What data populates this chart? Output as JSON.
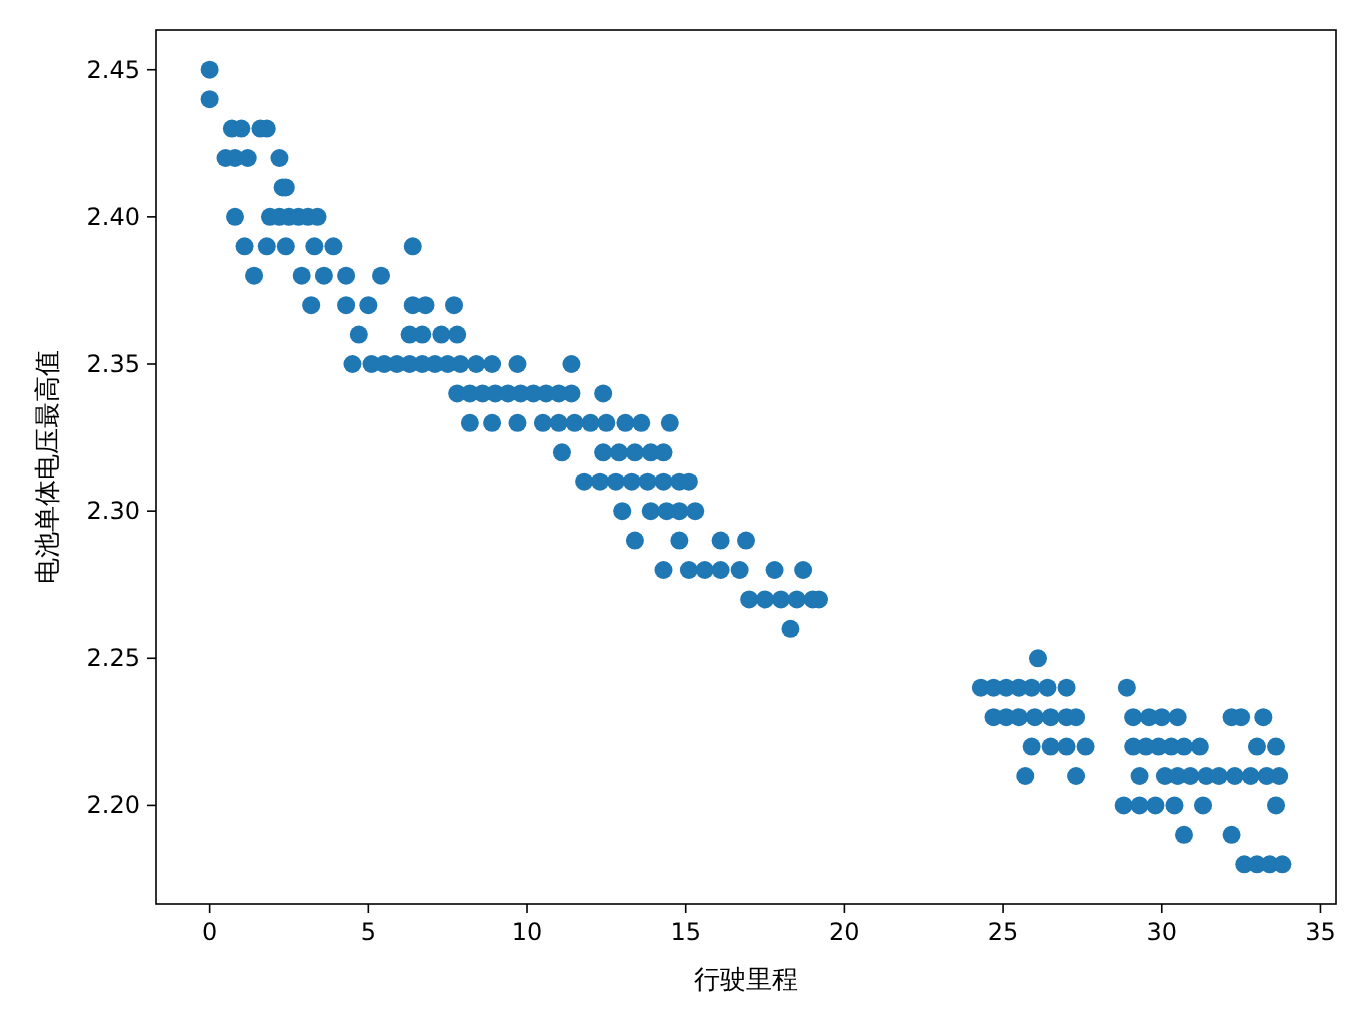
{
  "chart_data": {
    "type": "scatter",
    "xlabel": "行驶里程",
    "ylabel": "电池单体电压最高值",
    "xlim": [
      -1.69,
      35.49
    ],
    "ylim": [
      2.1665,
      2.4635
    ],
    "xticks": [
      0,
      5,
      10,
      15,
      20,
      25,
      30,
      35
    ],
    "yticks": [
      {
        "value": 2.2,
        "label": "2.20"
      },
      2.25,
      {
        "value": 2.3,
        "label": "2.30"
      },
      2.35,
      {
        "value": 2.4,
        "label": "2.40"
      },
      2.45
    ],
    "grid": false,
    "marker": "circle",
    "series": [
      {
        "color": "#1f77b4",
        "x": [
          0,
          0,
          0.7,
          1.0,
          1.6,
          1.8,
          0.5,
          0.8,
          1.2,
          2.2,
          2.3,
          2.4,
          0.8,
          1.9,
          2.2,
          2.5,
          2.8,
          3.1,
          3.4,
          1.1,
          1.8,
          2.4,
          3.3,
          3.9,
          6.4,
          1.4,
          2.9,
          3.6,
          4.3,
          5.4,
          3.2,
          4.3,
          5.0,
          6.4,
          6.8,
          7.7,
          4.7,
          6.3,
          6.7,
          7.3,
          7.8,
          4.5,
          5.1,
          5.5,
          5.9,
          6.3,
          6.7,
          7.1,
          7.5,
          7.9,
          8.4,
          8.9,
          9.7,
          11.4,
          7.8,
          8.2,
          8.6,
          9.0,
          9.4,
          9.8,
          10.2,
          10.6,
          11.0,
          11.4,
          12.4,
          8.2,
          8.9,
          9.7,
          10.5,
          11.0,
          11.5,
          12.0,
          12.5,
          13.1,
          13.6,
          14.5,
          11.1,
          12.4,
          12.9,
          13.4,
          13.9,
          14.3,
          11.8,
          12.3,
          12.8,
          13.3,
          13.8,
          14.3,
          14.8,
          15.1,
          13.0,
          13.9,
          14.4,
          14.8,
          15.3,
          13.4,
          14.8,
          16.1,
          16.9,
          14.3,
          15.1,
          15.6,
          16.1,
          16.7,
          17.8,
          18.7,
          17.0,
          17.5,
          18.0,
          18.5,
          19.0,
          19.2,
          18.3,
          26.1,
          24.3,
          24.7,
          25.1,
          25.5,
          25.9,
          26.4,
          27.0,
          28.9,
          24.7,
          25.1,
          25.5,
          26.0,
          26.5,
          27.0,
          27.3,
          29.1,
          29.6,
          30.0,
          30.5,
          32.2,
          32.5,
          33.2,
          25.9,
          26.5,
          27.0,
          27.6,
          29.1,
          29.5,
          29.9,
          30.3,
          30.7,
          31.2,
          33.0,
          33.6,
          25.7,
          27.3,
          29.3,
          30.1,
          30.5,
          30.9,
          31.4,
          31.8,
          32.3,
          32.8,
          33.3,
          33.7,
          28.8,
          29.3,
          29.8,
          30.4,
          31.3,
          33.6,
          30.7,
          32.2,
          32.6,
          33.0,
          33.4,
          33.8
        ],
        "values": [
          2.45,
          2.44,
          2.43,
          2.43,
          2.43,
          2.43,
          2.42,
          2.42,
          2.42,
          2.42,
          2.41,
          2.41,
          2.4,
          2.4,
          2.4,
          2.4,
          2.4,
          2.4,
          2.4,
          2.39,
          2.39,
          2.39,
          2.39,
          2.39,
          2.39,
          2.38,
          2.38,
          2.38,
          2.38,
          2.38,
          2.37,
          2.37,
          2.37,
          2.37,
          2.37,
          2.37,
          2.36,
          2.36,
          2.36,
          2.36,
          2.36,
          2.35,
          2.35,
          2.35,
          2.35,
          2.35,
          2.35,
          2.35,
          2.35,
          2.35,
          2.35,
          2.35,
          2.35,
          2.35,
          2.34,
          2.34,
          2.34,
          2.34,
          2.34,
          2.34,
          2.34,
          2.34,
          2.34,
          2.34,
          2.34,
          2.33,
          2.33,
          2.33,
          2.33,
          2.33,
          2.33,
          2.33,
          2.33,
          2.33,
          2.33,
          2.33,
          2.32,
          2.32,
          2.32,
          2.32,
          2.32,
          2.32,
          2.31,
          2.31,
          2.31,
          2.31,
          2.31,
          2.31,
          2.31,
          2.31,
          2.3,
          2.3,
          2.3,
          2.3,
          2.3,
          2.29,
          2.29,
          2.29,
          2.29,
          2.28,
          2.28,
          2.28,
          2.28,
          2.28,
          2.28,
          2.28,
          2.27,
          2.27,
          2.27,
          2.27,
          2.27,
          2.27,
          2.26,
          2.25,
          2.24,
          2.24,
          2.24,
          2.24,
          2.24,
          2.24,
          2.24,
          2.24,
          2.23,
          2.23,
          2.23,
          2.23,
          2.23,
          2.23,
          2.23,
          2.23,
          2.23,
          2.23,
          2.23,
          2.23,
          2.23,
          2.23,
          2.22,
          2.22,
          2.22,
          2.22,
          2.22,
          2.22,
          2.22,
          2.22,
          2.22,
          2.22,
          2.22,
          2.22,
          2.21,
          2.21,
          2.21,
          2.21,
          2.21,
          2.21,
          2.21,
          2.21,
          2.21,
          2.21,
          2.21,
          2.21,
          2.2,
          2.2,
          2.2,
          2.2,
          2.2,
          2.2,
          2.19,
          2.19,
          2.18,
          2.18,
          2.18,
          2.18
        ]
      }
    ]
  }
}
